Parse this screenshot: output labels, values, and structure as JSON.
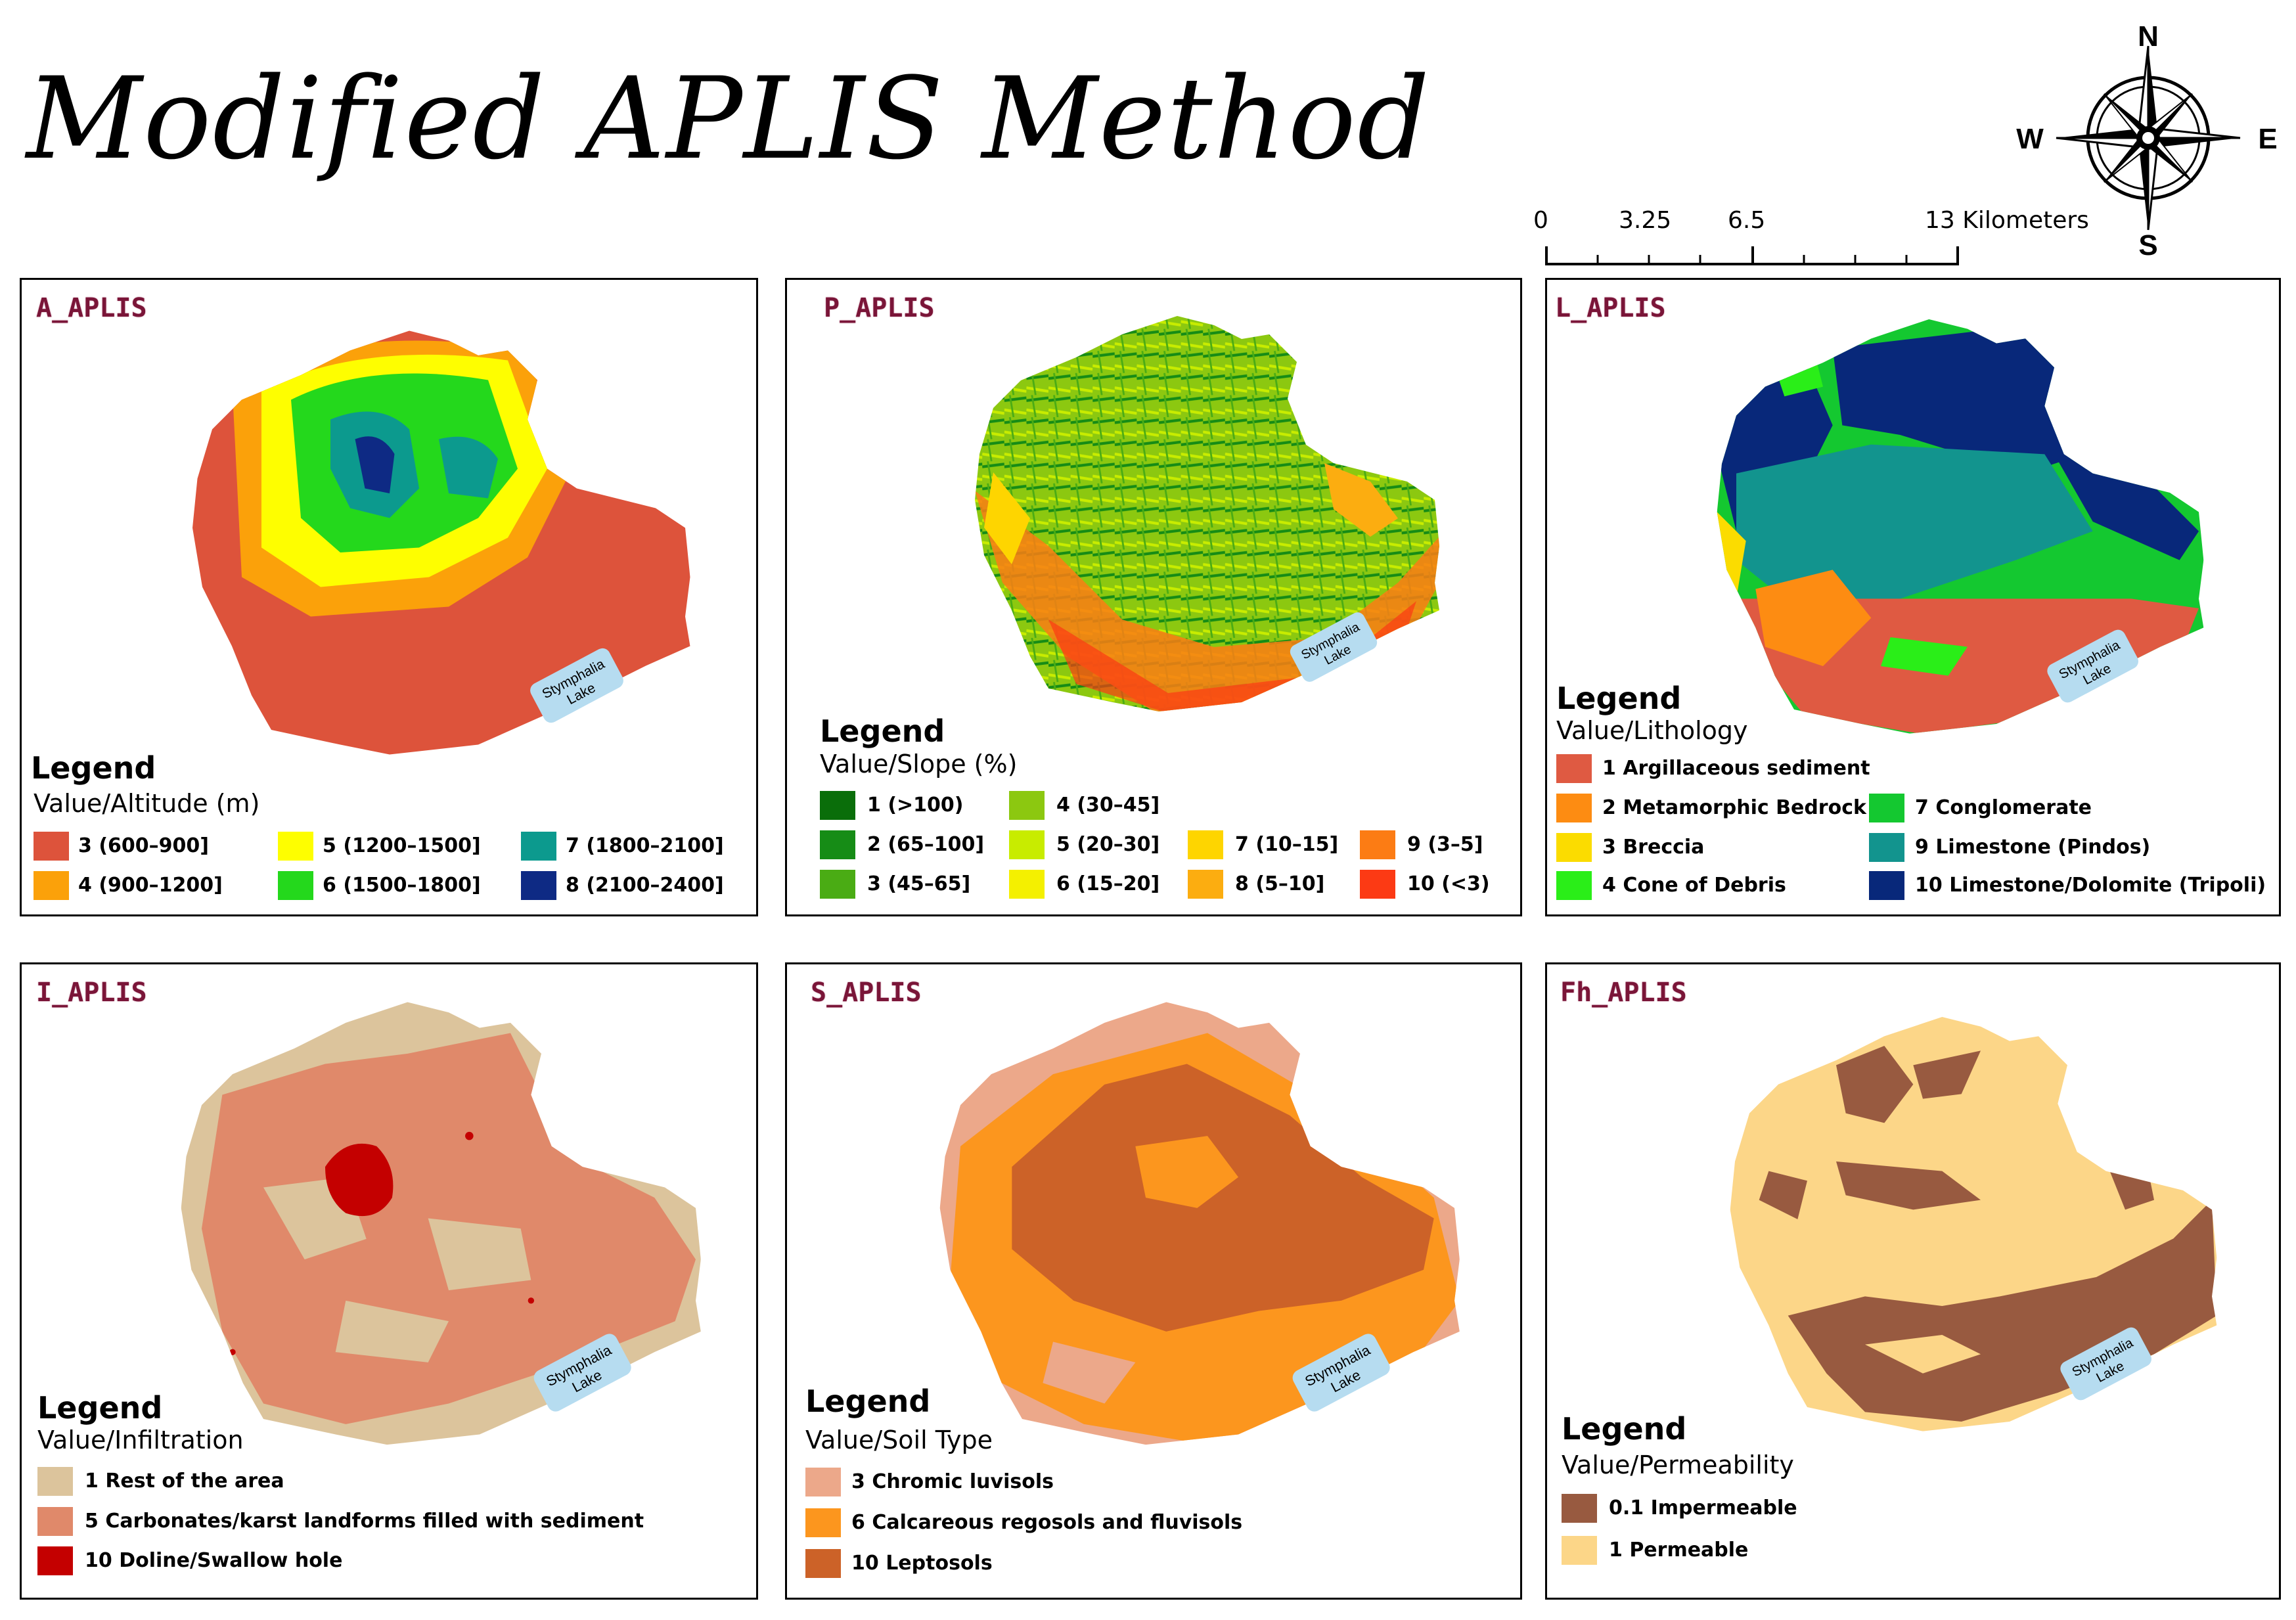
{
  "title": "Modified APLIS Method",
  "compass": {
    "n": "N",
    "s": "S",
    "e": "E",
    "w": "W"
  },
  "scale": {
    "ticks": [
      "0",
      "3.25",
      "6.5",
      "13 Kilometers"
    ]
  },
  "lake_label": {
    "line1": "Stymphalia",
    "line2": "Lake"
  },
  "legend_label": "Legend",
  "panels": [
    {
      "title": "A_APLIS",
      "subtitle": "Value/Altitude (m)",
      "items": [
        {
          "label": "3 (600–900]",
          "color": "#dd533b"
        },
        {
          "label": "4 (900–1200]",
          "color": "#fba10a"
        },
        {
          "label": "5 (1200–1500]",
          "color": "#fefe00"
        },
        {
          "label": "6 (1500–1800]",
          "color": "#24d81c"
        },
        {
          "label": "7 (1800–2100]",
          "color": "#0c9a8e"
        },
        {
          "label": "8 (2100–2400]",
          "color": "#0e2a84"
        }
      ]
    },
    {
      "title": "P_APLIS",
      "subtitle": "Value/Slope (%)",
      "items": [
        {
          "label": "1 (>100)",
          "color": "#0a6e0a"
        },
        {
          "label": "2 (65–100]",
          "color": "#168c16"
        },
        {
          "label": "3 (45–65]",
          "color": "#4aac14"
        },
        {
          "label": "4 (30–45]",
          "color": "#8cc810"
        },
        {
          "label": "5 (20–30]",
          "color": "#c8ec00"
        },
        {
          "label": "6 (15–20]",
          "color": "#f4f000"
        },
        {
          "label": "7 (10–15]",
          "color": "#fed500"
        },
        {
          "label": "8 (5–10]",
          "color": "#fcad10"
        },
        {
          "label": "9 (3–5]",
          "color": "#fc7c14"
        },
        {
          "label": "10 (<3)",
          "color": "#fc3a14"
        }
      ]
    },
    {
      "title": "L_APLIS",
      "subtitle": "Value/Lithology",
      "items": [
        {
          "label": "1 Argillaceous sediment",
          "color": "#df5a42"
        },
        {
          "label": "2 Metamorphic Bedrock",
          "color": "#fd8c12"
        },
        {
          "label": "3 Breccia",
          "color": "#fbdc00"
        },
        {
          "label": "4 Cone of Debris",
          "color": "#2aee18"
        },
        {
          "label": "7 Conglomerate",
          "color": "#14c830"
        },
        {
          "label": "9 Limestone (Pindos)",
          "color": "#12948e"
        },
        {
          "label": "10 Limestone/Dolomite (Tripoli)",
          "color": "#08287a"
        }
      ]
    },
    {
      "title": "I_APLIS",
      "subtitle": "Value/Infiltration",
      "items": [
        {
          "label": "1 Rest of the area",
          "color": "#dcc49c"
        },
        {
          "label": "5 Carbonates/karst landforms filled with sediment",
          "color": "#e0896a"
        },
        {
          "label": "10 Doline/Swallow hole",
          "color": "#c40000"
        }
      ]
    },
    {
      "title": "S_APLIS",
      "subtitle": "Value/Soil Type",
      "items": [
        {
          "label": "3 Chromic luvisols",
          "color": "#eca88a"
        },
        {
          "label": "6 Calcareous regosols and fluvisols",
          "color": "#fc961e"
        },
        {
          "label": "10 Leptosols",
          "color": "#cc6228"
        }
      ]
    },
    {
      "title": "Fh_APLIS",
      "subtitle": "Value/Permeability",
      "items": [
        {
          "label": "0.1 Impermeable",
          "color": "#985a40"
        },
        {
          "label": "1 Permeable",
          "color": "#fcd688"
        }
      ]
    }
  ]
}
